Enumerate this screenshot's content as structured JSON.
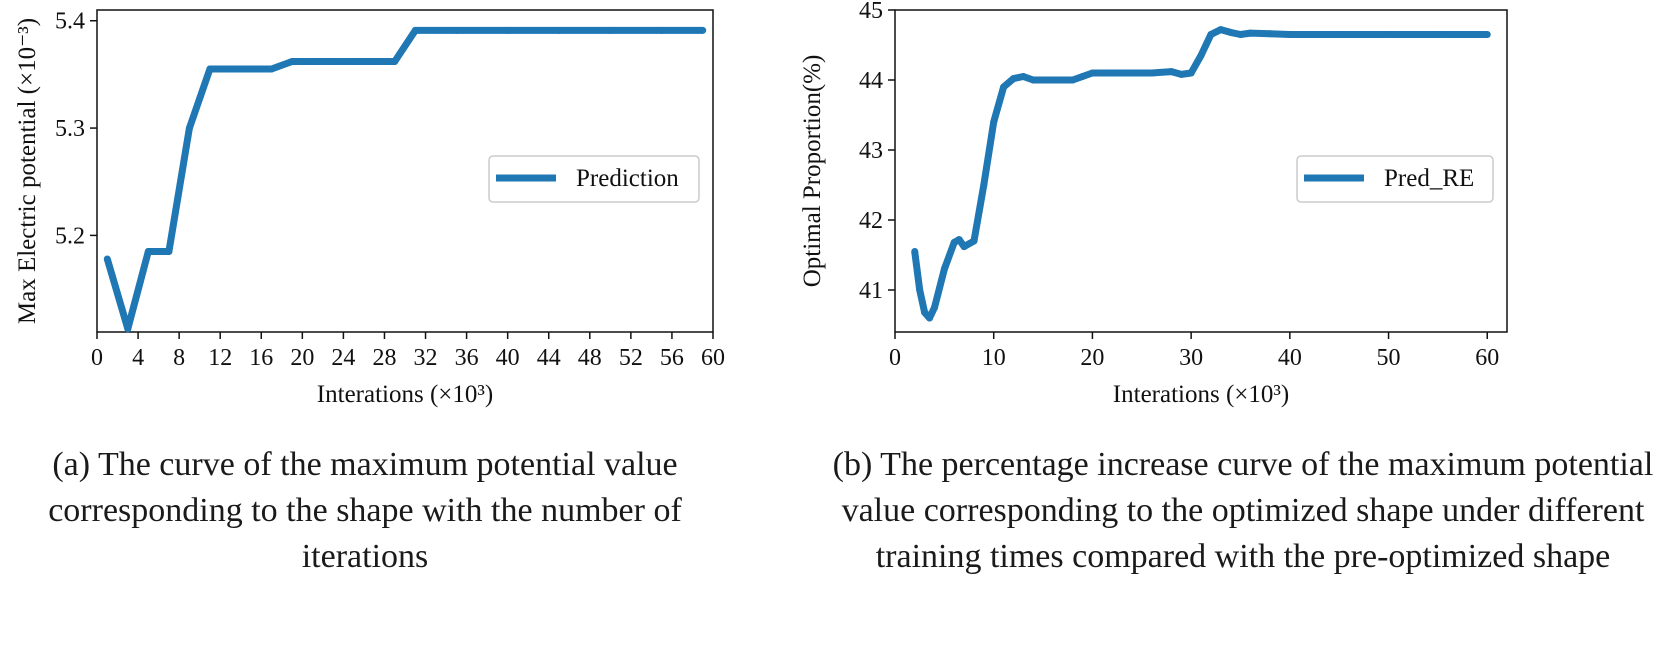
{
  "chart_data": [
    {
      "type": "line",
      "xlabel": "Interations (×10³)",
      "ylabel": "Max Electric potential (×10⁻³)",
      "xlim": [
        0,
        60
      ],
      "ylim": [
        5.11,
        5.41
      ],
      "xticks": [
        0,
        4,
        8,
        12,
        16,
        20,
        24,
        28,
        32,
        36,
        40,
        44,
        48,
        52,
        56,
        60
      ],
      "yticks": [
        5.2,
        5.3,
        5.4
      ],
      "grid": false,
      "legend": "center-right",
      "color": "#1f77b4",
      "series": [
        {
          "name": "Prediction",
          "x": [
            1,
            3,
            5,
            7,
            9,
            11,
            13,
            15,
            17,
            19,
            21,
            23,
            25,
            27,
            29,
            31,
            35,
            40,
            45,
            50,
            55,
            59
          ],
          "y": [
            5.178,
            5.113,
            5.185,
            5.185,
            5.3,
            5.355,
            5.355,
            5.355,
            5.355,
            5.362,
            5.362,
            5.362,
            5.362,
            5.362,
            5.362,
            5.391,
            5.391,
            5.391,
            5.391,
            5.391,
            5.391,
            5.391
          ]
        }
      ],
      "caption": "(a) The curve of the maximum potential value corresponding to the shape with the number of iterations"
    },
    {
      "type": "line",
      "xlabel": "Interations (×10³)",
      "ylabel": "Optimal Proportion(%)",
      "xlim": [
        0,
        62
      ],
      "ylim": [
        40.4,
        45.0
      ],
      "xticks": [
        0,
        10,
        20,
        30,
        40,
        50,
        60
      ],
      "yticks": [
        41,
        42,
        43,
        44,
        45
      ],
      "grid": false,
      "legend": "center-right",
      "color": "#1f77b4",
      "series": [
        {
          "name": "Pred_RE",
          "x": [
            2,
            2.5,
            3,
            3.5,
            4,
            5,
            6,
            6.5,
            7,
            8,
            9,
            10,
            11,
            12,
            13,
            14,
            16,
            18,
            19,
            20,
            21,
            22,
            24,
            26,
            28,
            29,
            30,
            31,
            32,
            33,
            34,
            35,
            36,
            38,
            40,
            45,
            50,
            55,
            60
          ],
          "y": [
            41.55,
            41.0,
            40.68,
            40.6,
            40.75,
            41.3,
            41.68,
            41.72,
            41.62,
            41.7,
            42.5,
            43.4,
            43.9,
            44.02,
            44.05,
            44.0,
            44.0,
            44.0,
            44.05,
            44.1,
            44.1,
            44.1,
            44.1,
            44.1,
            44.12,
            44.08,
            44.1,
            44.35,
            44.65,
            44.72,
            44.68,
            44.65,
            44.67,
            44.66,
            44.65,
            44.65,
            44.65,
            44.65,
            44.65
          ]
        }
      ],
      "caption": "(b) The percentage increase curve of the maximum potential value corresponding to the optimized shape under different training times compared with the pre-optimized shape"
    }
  ]
}
